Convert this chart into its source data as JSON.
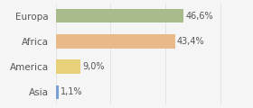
{
  "categories": [
    "Europa",
    "Africa",
    "America",
    "Asia"
  ],
  "values": [
    46.6,
    43.4,
    9.0,
    1.1
  ],
  "labels": [
    "46,6%",
    "43,4%",
    "9,0%",
    "1,1%"
  ],
  "bar_colors": [
    "#a8bb8a",
    "#e8b98a",
    "#e8d07a",
    "#7a9fd4"
  ],
  "background_color": "#f5f5f5",
  "xlim": [
    0,
    70
  ],
  "bar_height": 0.55,
  "label_fontsize": 7,
  "category_fontsize": 7.5
}
